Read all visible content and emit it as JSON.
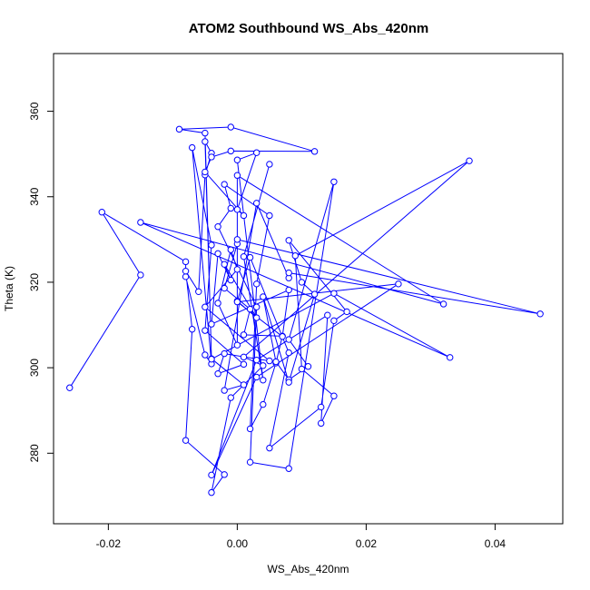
{
  "chart_data": {
    "type": "line",
    "title": "ATOM2 Southbound WS_Abs_420nm",
    "xlabel": "WS_Abs_420nm",
    "ylabel": "Theta (K)",
    "xlim": [
      -0.0285,
      0.0505
    ],
    "ylim": [
      263.5,
      373.5
    ],
    "xticks": [
      -0.02,
      0.0,
      0.02,
      0.04
    ],
    "xtick_labels": [
      "-0.02",
      "0.00",
      "0.02",
      "0.04"
    ],
    "yticks": [
      280,
      300,
      320,
      340,
      360
    ],
    "ytick_labels": [
      "280",
      "300",
      "320",
      "340",
      "360"
    ],
    "grid": false,
    "markers": "open-circle",
    "line_color": "#0000ff",
    "x": [
      -0.026,
      -0.015,
      -0.021,
      -0.008,
      -0.008,
      -0.005,
      -0.004,
      -0.007,
      -0.004,
      -0.005,
      0.001,
      -0.003,
      -0.002,
      0.005,
      -0.005,
      0.0,
      -0.001,
      -0.003,
      0.0,
      0.0,
      -0.002,
      0.002,
      0.001,
      0.007,
      0.006,
      0.004,
      0.002,
      0.003,
      0.005,
      -0.002,
      -0.001,
      -0.003,
      0.003,
      0.002,
      0.008,
      0.015,
      0.008,
      0.011,
      0.008,
      0.006,
      0.004,
      0.008,
      0.012,
      0.01,
      0.008,
      0.017,
      0.015,
      0.013,
      0.005,
      0.008,
      0.002,
      0.0,
      0.003,
      -0.002,
      -0.001,
      -0.003,
      -0.004,
      0.008,
      0.007,
      0.0,
      0.025,
      0.003,
      -0.004,
      0.003,
      0.014,
      0.013,
      0.015,
      0.01,
      0.009,
      0.036,
      0.001,
      0.004,
      -0.001,
      -0.004,
      -0.002,
      -0.008,
      -0.007,
      -0.008,
      -0.006,
      -0.005,
      -0.004,
      -0.005,
      -0.004,
      0.001,
      -0.002,
      0.003,
      0.008,
      0.008,
      0.047,
      0.0,
      0.0,
      0.032,
      -0.015,
      0.033,
      0.015,
      -0.004,
      -0.005,
      -0.009,
      -0.001,
      0.012,
      -0.001,
      -0.004,
      -0.005,
      0.001,
      0.0,
      0.003,
      0.0,
      0.004,
      0.001,
      0.005
    ],
    "y": [
      295.3,
      321.7,
      336.4,
      324.8,
      321.3,
      303.0,
      300.9,
      351.5,
      328.7,
      308.7,
      300.8,
      298.6,
      303.3,
      301.6,
      314.2,
      323.0,
      327.6,
      315.1,
      305.3,
      329.0,
      318.6,
      313.7,
      307.7,
      307.4,
      301.1,
      291.4,
      285.7,
      319.6,
      335.6,
      342.9,
      337.3,
      333.0,
      314.2,
      277.9,
      276.4,
      343.5,
      306.6,
      300.3,
      297.2,
      301.4,
      316.6,
      296.6,
      317.2,
      320.0,
      329.8,
      313.1,
      311.0,
      290.8,
      281.2,
      303.5,
      325.8,
      315.6,
      311.7,
      324.2,
      320.5,
      326.7,
      310.2,
      318.2,
      307.3,
      315.4,
      319.6,
      297.8,
      274.9,
      301.8,
      312.3,
      287.0,
      293.4,
      299.7,
      326.2,
      348.4,
      302.5,
      300.5,
      293.0,
      270.8,
      275.0,
      283.0,
      309.0,
      322.6,
      317.8,
      345.1,
      350.2,
      352.9,
      302.1,
      296.0,
      294.7,
      338.5,
      321.0,
      322.2,
      312.6,
      330.0,
      345.0,
      314.9,
      334.0,
      302.4,
      317.4,
      302.0,
      354.9,
      355.8,
      356.3,
      350.6,
      350.7,
      349.3,
      345.8,
      335.6,
      337.0,
      350.3,
      348.6,
      297.1,
      326.0,
      347.6
    ]
  }
}
